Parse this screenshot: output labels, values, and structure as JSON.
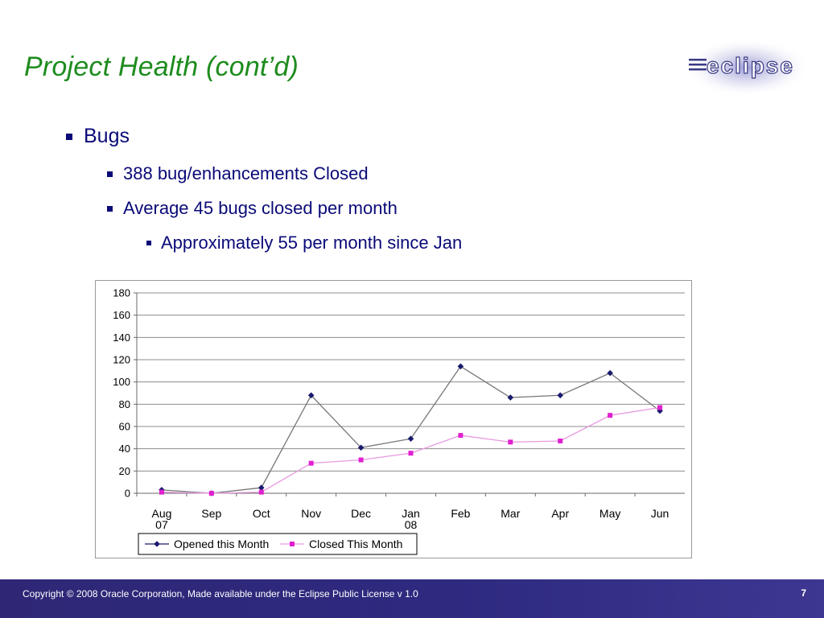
{
  "slide": {
    "title": "Project Health (cont’d)",
    "logo_text": "eclipse",
    "footer_text": "Copyright © 2008 Oracle Corporation, Made available under the Eclipse Public License v 1.0",
    "page_number": "7"
  },
  "bullets": {
    "level1": "Bugs",
    "level2": [
      "388 bug/enhancements Closed",
      "Average 45 bugs closed per month"
    ],
    "level3": "Approximately 55 per month since Jan"
  },
  "colors": {
    "title": "#1e8c1e",
    "text": "#0a0a78",
    "opened_series": "#1a1a6e",
    "closed_series": "#e020d0",
    "footer": "#2f2776"
  },
  "chart_data": {
    "type": "line",
    "categories": [
      [
        "Aug",
        "07"
      ],
      [
        "Sep"
      ],
      [
        "Oct"
      ],
      [
        "Nov"
      ],
      [
        "Dec"
      ],
      [
        "Jan",
        "08"
      ],
      [
        "Feb"
      ],
      [
        "Mar"
      ],
      [
        "Apr"
      ],
      [
        "May"
      ],
      [
        "Jun"
      ]
    ],
    "series": [
      {
        "name": "Opened this Month",
        "marker": "diamond",
        "color": "#1a1a6e",
        "values": [
          3,
          0,
          5,
          88,
          41,
          49,
          114,
          86,
          88,
          108,
          74
        ]
      },
      {
        "name": "Closed This Month",
        "marker": "square",
        "color": "#e020d0",
        "values": [
          1,
          0,
          1,
          27,
          30,
          36,
          52,
          46,
          47,
          70,
          77
        ]
      }
    ],
    "ylim": [
      0,
      180
    ],
    "yticks": [
      0,
      20,
      40,
      60,
      80,
      100,
      120,
      140,
      160,
      180
    ],
    "grid": true,
    "legend_position": "bottom-left"
  }
}
